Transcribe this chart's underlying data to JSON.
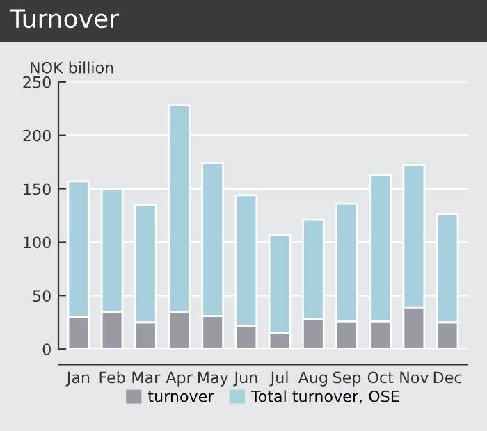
{
  "chart_data": {
    "type": "bar",
    "title": "Turnover",
    "ylabel": "NOK billion",
    "stacked": true,
    "categories": [
      "Jan",
      "Feb",
      "Mar",
      "Apr",
      "May",
      "Jun",
      "Jul",
      "Aug",
      "Sep",
      "Oct",
      "Nov",
      "Dec"
    ],
    "series": [
      {
        "name": "turnover",
        "color": "#9a9aa2",
        "values": [
          30,
          35,
          25,
          35,
          31,
          22,
          15,
          28,
          26,
          26,
          39,
          25
        ]
      },
      {
        "name": "Total turnover, OSE",
        "color": "#a6d0dd",
        "values": [
          127,
          115,
          110,
          193,
          143,
          122,
          92,
          93,
          110,
          137,
          133,
          101
        ]
      }
    ],
    "ylim": [
      0,
      250
    ],
    "yticks": [
      0,
      50,
      100,
      150,
      200,
      250
    ],
    "grid": "y",
    "legend": "bottom"
  }
}
